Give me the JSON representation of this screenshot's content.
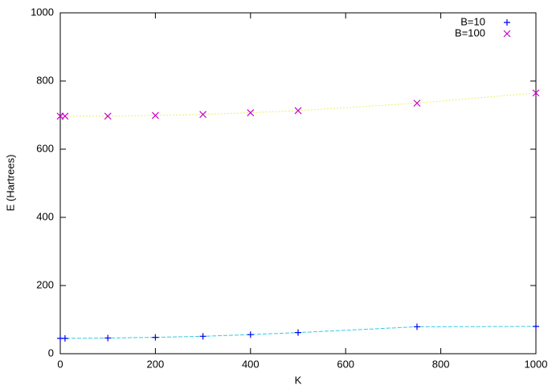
{
  "chart_data": {
    "type": "scatter",
    "x_label": "K",
    "y_label": "E (Hartrees)",
    "xlim": [
      0,
      1000
    ],
    "ylim": [
      0,
      1000
    ],
    "xticks": [
      0,
      200,
      400,
      600,
      800,
      1000
    ],
    "yticks": [
      0,
      200,
      400,
      600,
      800,
      1000
    ],
    "grid": false,
    "legend": "top-right",
    "series": [
      {
        "name": "B=10",
        "marker": "plus",
        "color": "#0000ee",
        "line_color": "#33ccdd",
        "x": [
          0,
          10,
          100,
          200,
          300,
          400,
          500,
          750,
          1000
        ],
        "values": [
          45,
          45,
          46,
          48,
          51,
          56,
          62,
          79,
          80
        ]
      },
      {
        "name": "B=100",
        "marker": "cross",
        "color": "#cc00cc",
        "line_color": "#eeee66",
        "x": [
          0,
          10,
          100,
          200,
          300,
          400,
          500,
          750,
          1000
        ],
        "values": [
          697,
          697,
          697,
          699,
          702,
          707,
          713,
          735,
          765
        ]
      }
    ]
  }
}
